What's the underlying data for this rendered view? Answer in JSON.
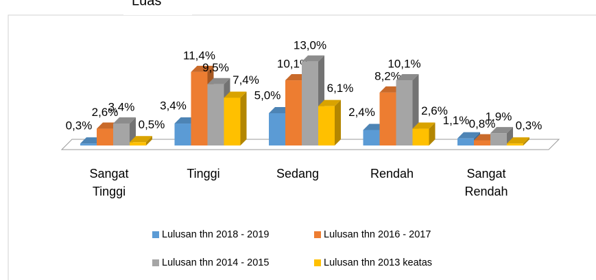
{
  "chart_data": {
    "type": "bar3d",
    "title": "Luas",
    "categories": [
      "Sangat Tinggi",
      "Tinggi",
      "Sedang",
      "Rendah",
      "Sangat Rendah"
    ],
    "series": [
      {
        "name": "Lulusan thn 2018 - 2019",
        "color": "#5b9bd5",
        "values": [
          0.3,
          3.4,
          5.0,
          2.4,
          1.1
        ],
        "value_labels": [
          "0,3%",
          "3,4%",
          "5,0%",
          "2,4%",
          "1,1%"
        ]
      },
      {
        "name": "Lulusan thn 2016 - 2017",
        "color": "#ed7d31",
        "values": [
          2.6,
          11.4,
          10.1,
          8.2,
          0.8
        ],
        "value_labels": [
          "2,6%",
          "11,4%",
          "10,1%",
          "8,2%",
          "0,8%"
        ]
      },
      {
        "name": "Lulusan thn 2014 - 2015",
        "color": "#a5a5a5",
        "values": [
          3.4,
          9.5,
          13.0,
          10.1,
          1.9
        ],
        "value_labels": [
          "3,4%",
          "9,5%",
          "13,0%",
          "10,1%",
          "1,9%"
        ]
      },
      {
        "name": "Lulusan thn 2013 keatas",
        "color": "#ffc000",
        "values": [
          0.5,
          7.4,
          6.1,
          2.6,
          0.3
        ],
        "value_labels": [
          "0,5%",
          "7,4%",
          "6,1%",
          "2,6%",
          "0,3%"
        ]
      }
    ],
    "legend": "bottom"
  }
}
